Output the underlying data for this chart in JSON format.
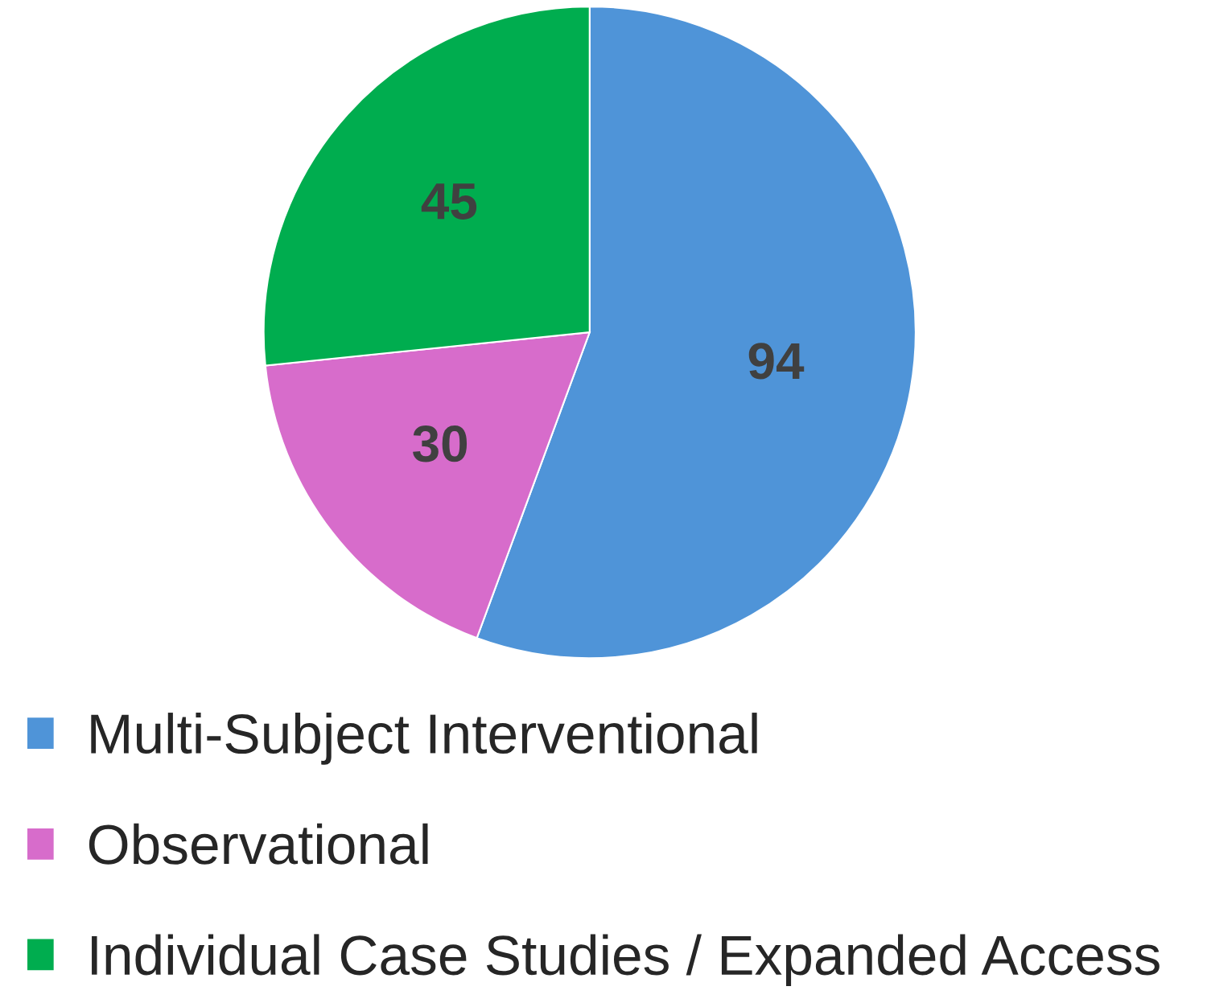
{
  "chart_data": {
    "type": "pie",
    "categories": [
      "Multi-Subject Interventional",
      "Observational",
      "Individual Case Studies / Expanded Access"
    ],
    "values": [
      94,
      30,
      45
    ],
    "colors": [
      "#4f94d8",
      "#d76ccb",
      "#00ad4f"
    ],
    "data_labels": true,
    "legend": "bottom"
  }
}
